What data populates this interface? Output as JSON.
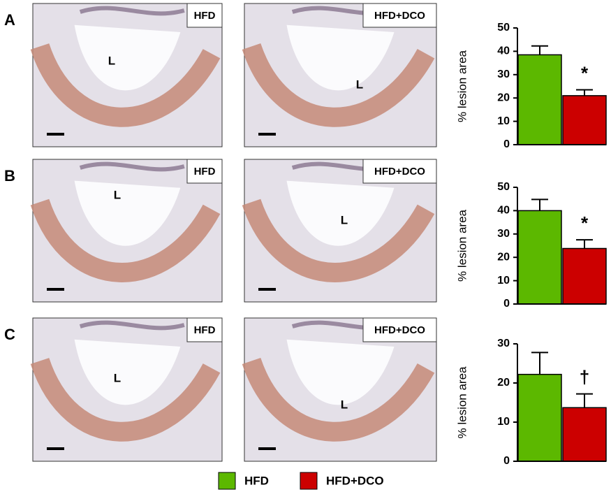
{
  "legend": [
    {
      "name": "HFD",
      "color": "#5cb800"
    },
    {
      "name": "HFD+DCO",
      "color": "#cc0000"
    }
  ],
  "panels": [
    {
      "letter": "A",
      "images": [
        {
          "tag": "HFD",
          "lumen": "L"
        },
        {
          "tag": "HFD+DCO",
          "lumen": "L"
        }
      ]
    },
    {
      "letter": "B",
      "images": [
        {
          "tag": "HFD",
          "lumen": "L"
        },
        {
          "tag": "HFD+DCO",
          "lumen": "L"
        }
      ]
    },
    {
      "letter": "C",
      "images": [
        {
          "tag": "HFD",
          "lumen": "L"
        },
        {
          "tag": "HFD+DCO",
          "lumen": "L"
        }
      ]
    }
  ],
  "chart_data": [
    {
      "type": "bar",
      "ylabel": "% lesion area",
      "values": [
        38.5,
        21
      ],
      "errors": [
        3.8,
        2.5
      ],
      "annotation": "*",
      "ylim": [
        0,
        50
      ],
      "yticks": [
        0,
        10,
        20,
        30,
        40,
        50
      ]
    },
    {
      "type": "bar",
      "ylabel": "% lesion area",
      "values": [
        40,
        23.8
      ],
      "errors": [
        4.8,
        3.7
      ],
      "annotation": "*",
      "ylim": [
        0,
        50
      ],
      "yticks": [
        0,
        10,
        20,
        30,
        40,
        50
      ]
    },
    {
      "type": "bar",
      "ylabel": "% lesion area",
      "values": [
        22.2,
        13.7
      ],
      "errors": [
        5.6,
        3.5
      ],
      "annotation": "†",
      "ylim": [
        0,
        30
      ],
      "yticks": [
        0,
        10,
        20,
        30
      ]
    }
  ]
}
